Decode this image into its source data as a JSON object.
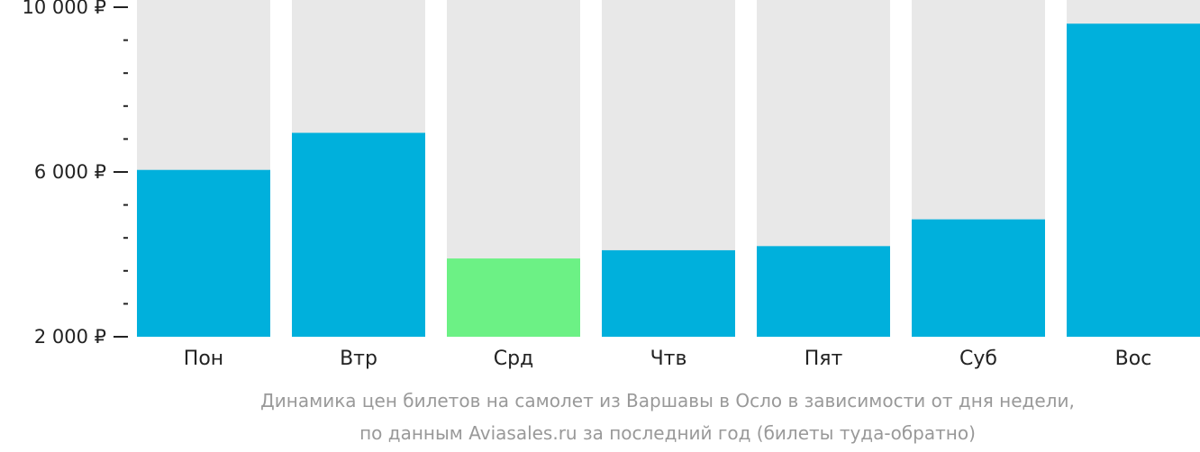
{
  "chart_data": {
    "type": "bar",
    "categories": [
      "Пон",
      "Втр",
      "Срд",
      "Чтв",
      "Пят",
      "Суб",
      "Вос"
    ],
    "values": [
      6050,
      6950,
      3900,
      4100,
      4200,
      4850,
      9600
    ],
    "highlight_index": 2,
    "ylim": [
      2000,
      10000
    ],
    "y_tick_labels": [
      {
        "value": 10000,
        "label": "10 000 ₽"
      },
      {
        "value": 6000,
        "label": "6 000 ₽"
      },
      {
        "value": 2000,
        "label": "2 000 ₽"
      }
    ],
    "minor_tick_step": 800,
    "caption": [
      "Динамика цен билетов на самолет из Варшавы в Осло в зависимости от дня недели,",
      "по данным Aviasales.ru за последний год (билеты туда-обратно)"
    ],
    "colors": {
      "bar": "#00b0dc",
      "highlight": "#6cf185",
      "background_bar": "#e8e8e8",
      "axis": "#222222",
      "caption": "#999999"
    }
  }
}
